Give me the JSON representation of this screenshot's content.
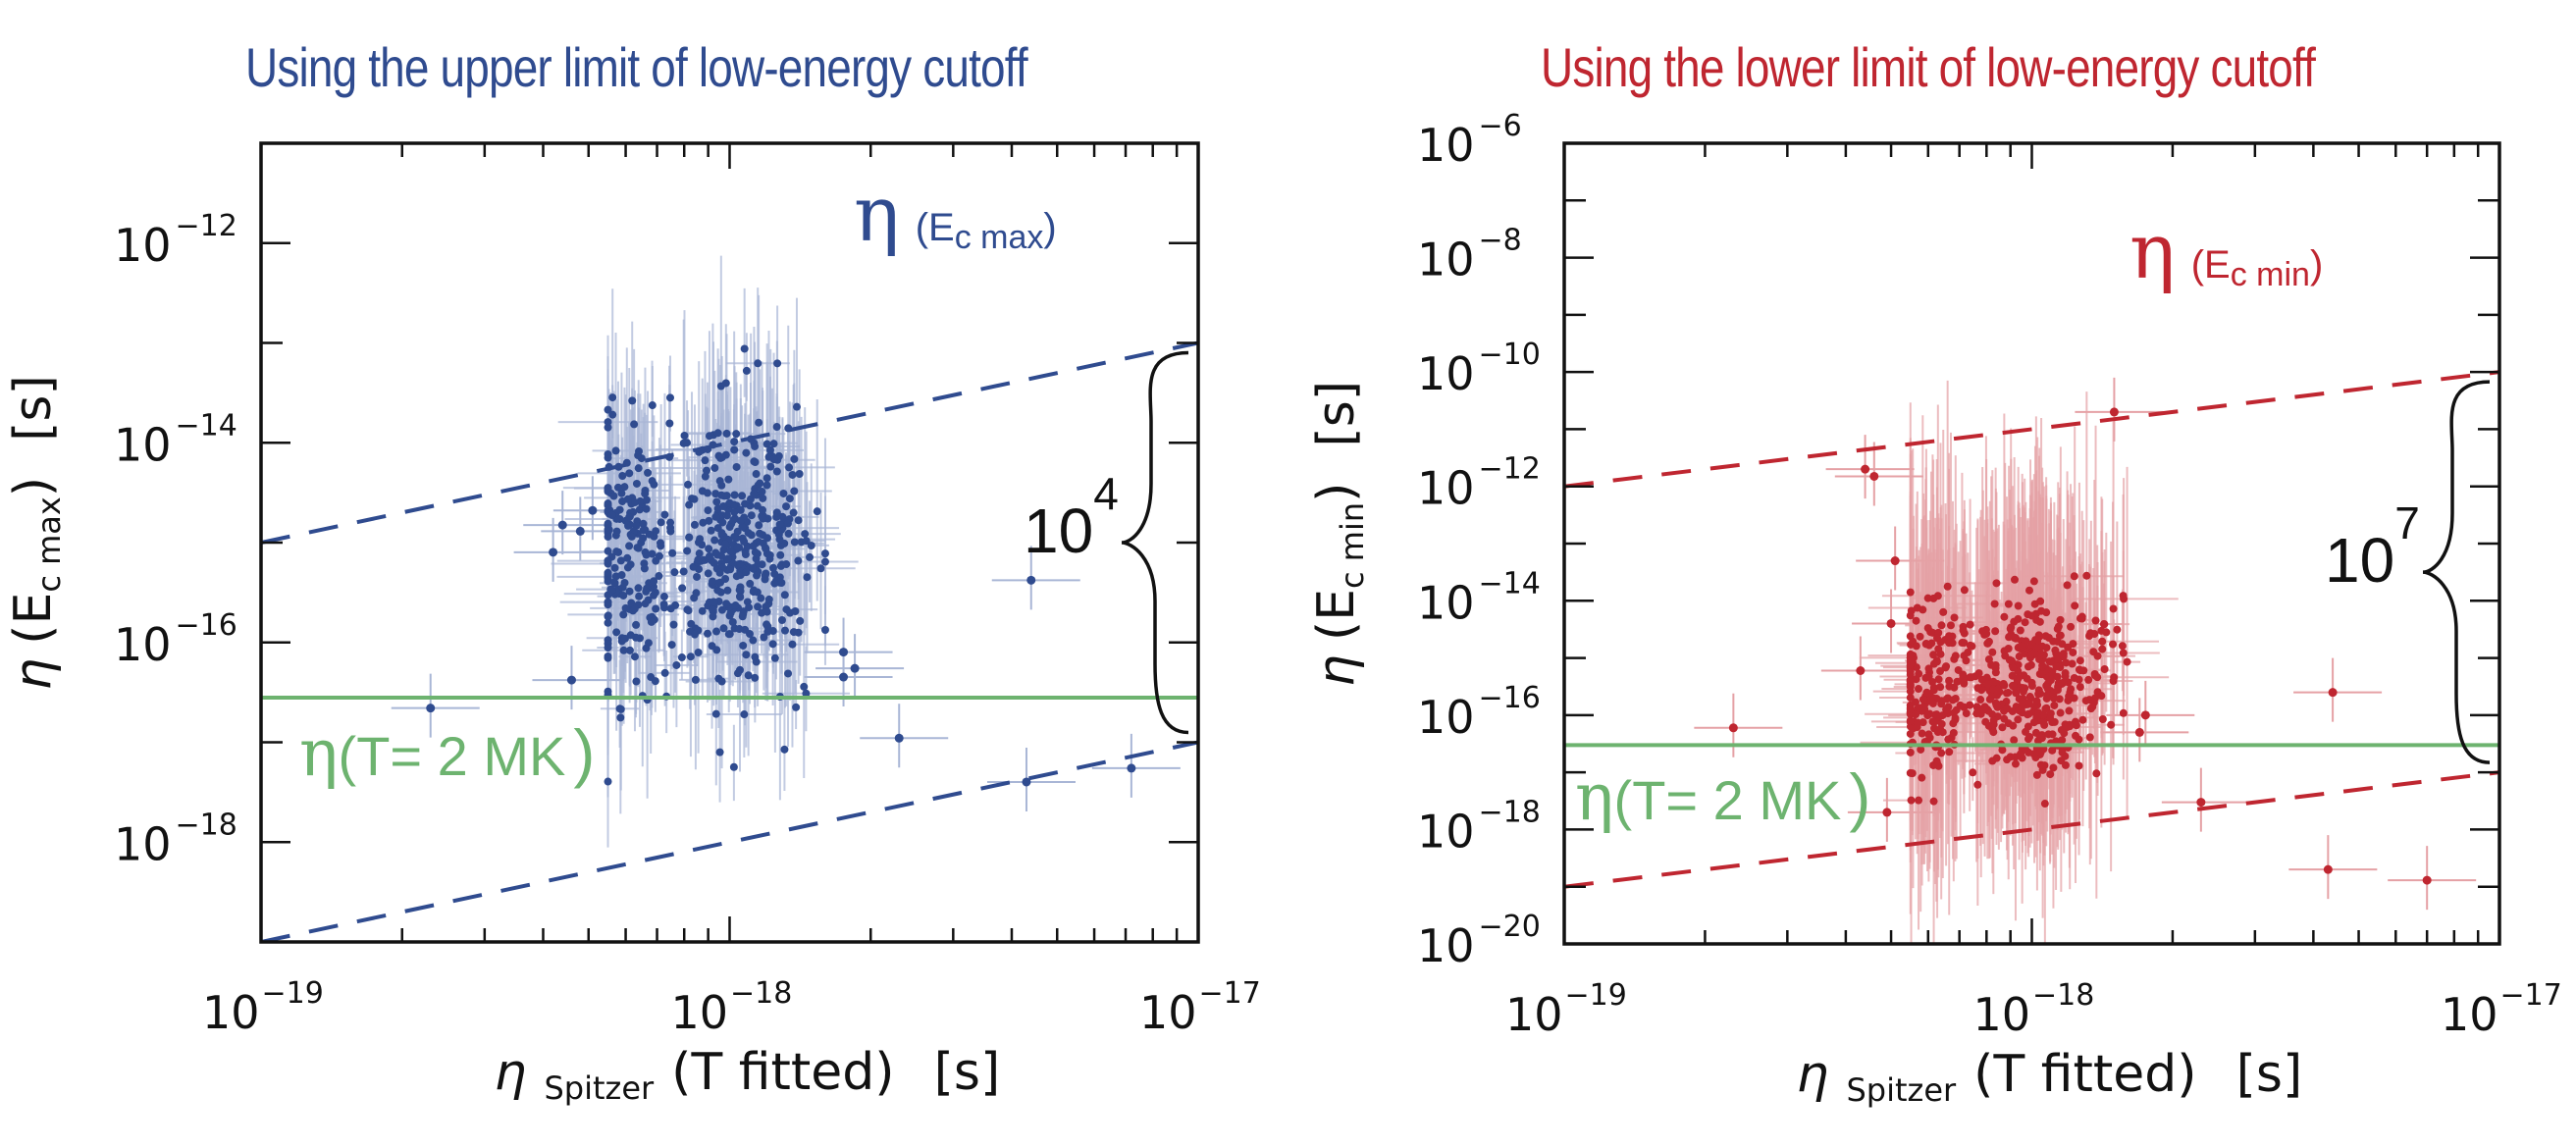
{
  "colors": {
    "blue": "#2f4b8f",
    "blue_err": "#a9b6d6",
    "red": "#bf2630",
    "red_err": "#e5a1a5",
    "green": "#6db36f",
    "axis": "#111111"
  },
  "chart_data": [
    {
      "type": "scatter",
      "title": "Using the upper limit of low-energy cutoff",
      "xlabel": "η Spitzer (T fitted)  [s]",
      "xlabel_parts": {
        "symbol": "η",
        "sub": "Spitzer",
        "rest": "(T fitted)",
        "unit": "[s]"
      },
      "ylabel": "η (E c max)  [s]",
      "ylabel_parts": {
        "symbol": "η",
        "open": "(",
        "E": "E",
        "sub": "c max",
        "close": ")",
        "unit": "[s]"
      },
      "xscale": "log",
      "yscale": "log",
      "xlim": [
        1e-19,
        1e-17
      ],
      "ylim": [
        1e-19,
        1e-11
      ],
      "xticks": [
        {
          "base": "10",
          "exp": "−19",
          "value": -19
        },
        {
          "base": "10",
          "exp": "−18",
          "value": -18
        },
        {
          "base": "10",
          "exp": "−17",
          "value": -17
        }
      ],
      "yticks": [
        {
          "base": "10",
          "exp": "−12",
          "value": -12
        },
        {
          "base": "10",
          "exp": "−14",
          "value": -14
        },
        {
          "base": "10",
          "exp": "−16",
          "value": -16
        },
        {
          "base": "10",
          "exp": "−18",
          "value": -18
        }
      ],
      "series_label": {
        "symbol": "η",
        "text": "(E",
        "sub": "c max",
        "close": ")"
      },
      "reference_line": {
        "label_symbol": "η",
        "label_text": "(T= 2 MK",
        "label_close": ")",
        "value": 2.8e-17
      },
      "dashed_lines": [
        {
          "name": "upper",
          "factor": 10000.0
        },
        {
          "name": "lower",
          "factor": 1
        }
      ],
      "brace_label": {
        "base": "10",
        "exp": "4"
      },
      "cluster": {
        "x_range": [
          5.5e-19,
          1.6e-18
        ],
        "y_center_log": -15.3,
        "count_approx": 600
      },
      "outliers": [
        {
          "x": 2.3e-19,
          "y": 2.2e-17
        },
        {
          "x": 4.6e-19,
          "y": 4.2e-17
        },
        {
          "x": 4.4e-19,
          "y": 1.5e-15
        },
        {
          "x": 4.2e-19,
          "y": 8e-16
        },
        {
          "x": 4.8e-19,
          "y": 1.3e-15
        },
        {
          "x": 5.1e-19,
          "y": 2.1e-15
        },
        {
          "x": 1.75e-18,
          "y": 4.5e-17
        },
        {
          "x": 1.75e-18,
          "y": 8e-17
        },
        {
          "x": 1.85e-18,
          "y": 5.5e-17
        },
        {
          "x": 2.3e-18,
          "y": 1.1e-17
        },
        {
          "x": 4.4e-18,
          "y": 4.2e-16
        },
        {
          "x": 4.3e-18,
          "y": 4e-18
        },
        {
          "x": 7.2e-18,
          "y": 5.5e-18
        }
      ]
    },
    {
      "type": "scatter",
      "title": "Using the lower limit of low-energy cutoff",
      "xlabel": "η Spitzer (T fitted)  [s]",
      "xlabel_parts": {
        "symbol": "η",
        "sub": "Spitzer",
        "rest": "(T fitted)",
        "unit": "[s]"
      },
      "ylabel": "η (E c min)  [s]",
      "ylabel_parts": {
        "symbol": "η",
        "open": "(",
        "E": "E",
        "sub": "c min",
        "close": ")",
        "unit": "[s]"
      },
      "xscale": "log",
      "yscale": "log",
      "xlim": [
        1e-19,
        1e-17
      ],
      "ylim": [
        1e-20,
        1e-06
      ],
      "xticks": [
        {
          "base": "10",
          "exp": "−19",
          "value": -19
        },
        {
          "base": "10",
          "exp": "−18",
          "value": -18
        },
        {
          "base": "10",
          "exp": "−17",
          "value": -17
        }
      ],
      "yticks": [
        {
          "base": "10",
          "exp": "−6",
          "value": -6
        },
        {
          "base": "10",
          "exp": "−8",
          "value": -8
        },
        {
          "base": "10",
          "exp": "−10",
          "value": -10
        },
        {
          "base": "10",
          "exp": "−12",
          "value": -12
        },
        {
          "base": "10",
          "exp": "−14",
          "value": -14
        },
        {
          "base": "10",
          "exp": "−16",
          "value": -16
        },
        {
          "base": "10",
          "exp": "−18",
          "value": -18
        },
        {
          "base": "10",
          "exp": "−20",
          "value": -20
        }
      ],
      "series_label": {
        "symbol": "η",
        "text": "(E",
        "sub": "c min",
        "close": ")"
      },
      "reference_line": {
        "label_symbol": "η",
        "label_text": "(T= 2 MK",
        "label_close": ")",
        "value": 3e-17
      },
      "dashed_lines": [
        {
          "name": "upper",
          "factor": 10000000.0
        },
        {
          "name": "lower",
          "factor": 1
        }
      ],
      "brace_label": {
        "base": "10",
        "exp": "7"
      },
      "cluster": {
        "x_range": [
          5.5e-19,
          1.6e-18
        ],
        "y_center_log": -15.6,
        "count_approx": 600
      },
      "outliers": [
        {
          "x": 2.3e-19,
          "y": 6e-17
        },
        {
          "x": 4.6e-19,
          "y": 1.5e-12
        },
        {
          "x": 4.4e-19,
          "y": 2e-12
        },
        {
          "x": 5.1e-19,
          "y": 5e-14
        },
        {
          "x": 5e-19,
          "y": 4e-15
        },
        {
          "x": 4.3e-19,
          "y": 6e-16
        },
        {
          "x": 4.9e-19,
          "y": 2e-18
        },
        {
          "x": 1.5e-18,
          "y": 2e-11
        },
        {
          "x": 1.7e-18,
          "y": 5e-17
        },
        {
          "x": 1.75e-18,
          "y": 1e-16
        },
        {
          "x": 2.3e-18,
          "y": 3e-18
        },
        {
          "x": 4.4e-18,
          "y": 2.5e-16
        },
        {
          "x": 4.3e-18,
          "y": 2e-19
        },
        {
          "x": 7e-18,
          "y": 1.3e-19
        }
      ]
    }
  ]
}
